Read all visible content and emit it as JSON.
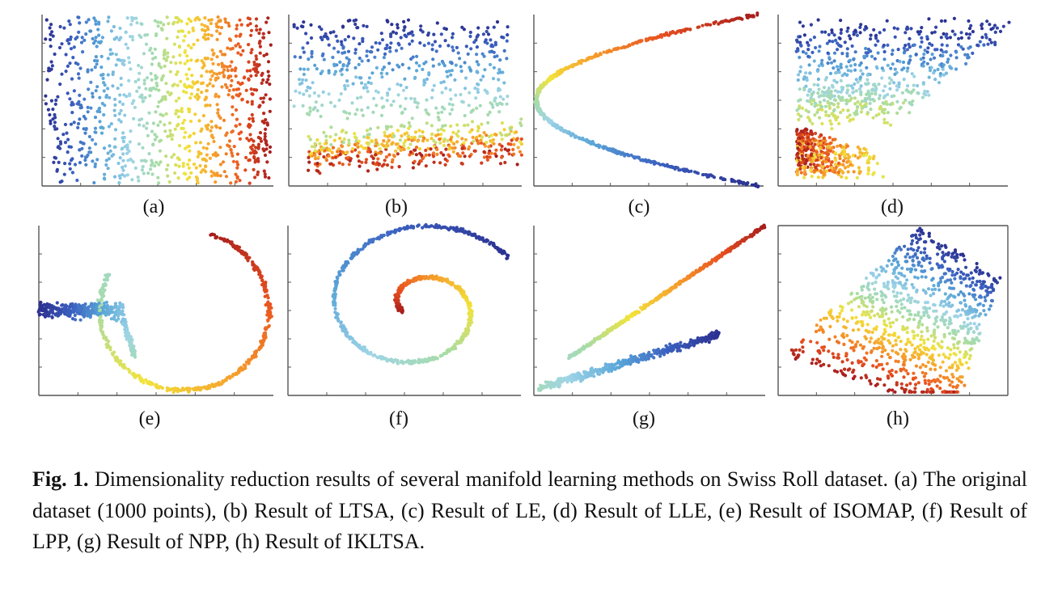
{
  "figure": {
    "panels": [
      {
        "id": "a",
        "label": "(a)",
        "shape": "roll-unfolded"
      },
      {
        "id": "b",
        "label": "(b)",
        "shape": "ltsa"
      },
      {
        "id": "c",
        "label": "(c)",
        "shape": "le-parabola"
      },
      {
        "id": "d",
        "label": "(d)",
        "shape": "lle-wedge"
      },
      {
        "id": "e",
        "label": "(e)",
        "shape": "isomap-loop"
      },
      {
        "id": "f",
        "label": "(f)",
        "shape": "lpp-spiral"
      },
      {
        "id": "g",
        "label": "(g)",
        "shape": "npp-lines"
      },
      {
        "id": "h",
        "label": "(h)",
        "shape": "ikltsa-wedge"
      }
    ],
    "colormap": [
      "#2b2f8f",
      "#3a5fbf",
      "#5aa6d8",
      "#9ed4e6",
      "#a7dca6",
      "#f2e33a",
      "#f6a02c",
      "#e8501f",
      "#a51d1d"
    ]
  },
  "caption": {
    "fig_label": "Fig. 1.",
    "text": " Dimensionality reduction results of several manifold learning methods on Swiss Roll dataset. (a) The original dataset (1000 points), (b) Result of LTSA, (c) Result of LE, (d) Result of LLE, (e) Result of ISOMAP, (f) Result of LPP, (g) Result of NPP, (h) Result of IKLTSA."
  }
}
